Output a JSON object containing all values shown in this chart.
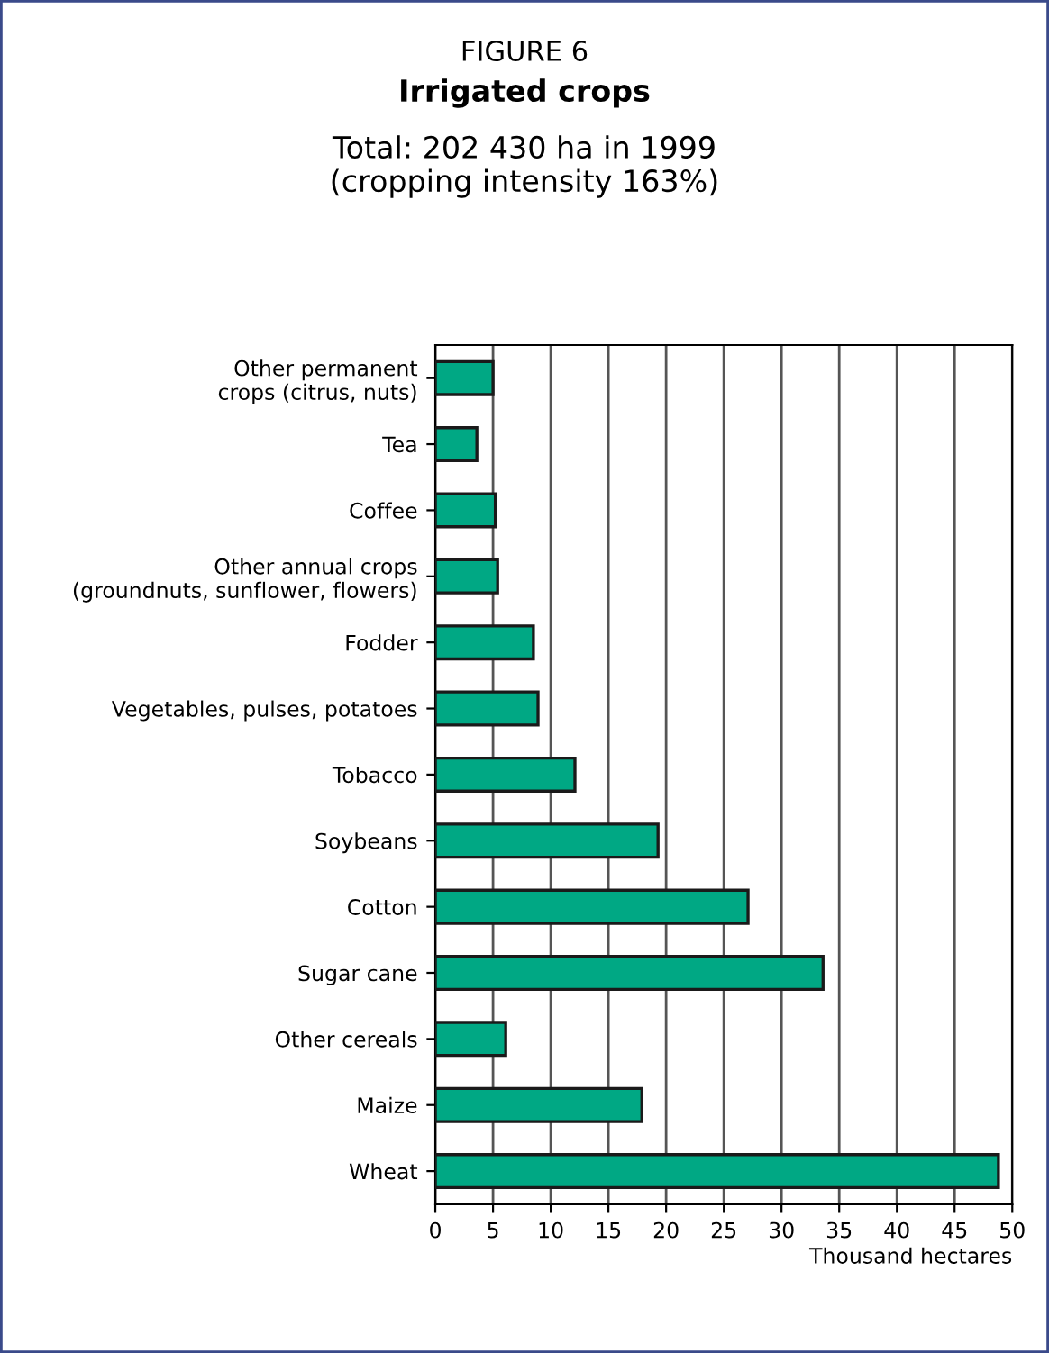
{
  "chart_data": {
    "type": "bar",
    "orientation": "horizontal",
    "title": "FIGURE 6",
    "subtitle": "Irrigated crops",
    "annotations": [
      "Total: 202 430 ha in 1999\n(cropping intensity 163%)"
    ],
    "xlabel": "Thousand hectares",
    "categories": [
      "Other permanent\ncrops (citrus, nuts)",
      "Tea",
      "Coffee",
      "Other annual crops\n(groundnuts, sunflower, flowers)",
      "Fodder",
      "Vegetables, pulses, potatoes",
      "Tobacco",
      "Soybeans",
      "Cotton",
      "Sugar cane",
      "Other cereals",
      "Maize",
      "Wheat"
    ],
    "values": [
      5.0,
      3.6,
      5.2,
      5.4,
      8.5,
      8.9,
      12.1,
      19.3,
      27.1,
      33.6,
      6.1,
      17.9,
      48.8
    ],
    "color": "#00a884",
    "xlim": [
      0,
      50
    ],
    "xticks": [
      0,
      5,
      10,
      15,
      20,
      25,
      30,
      35,
      40,
      45,
      50
    ],
    "grid": "x"
  }
}
